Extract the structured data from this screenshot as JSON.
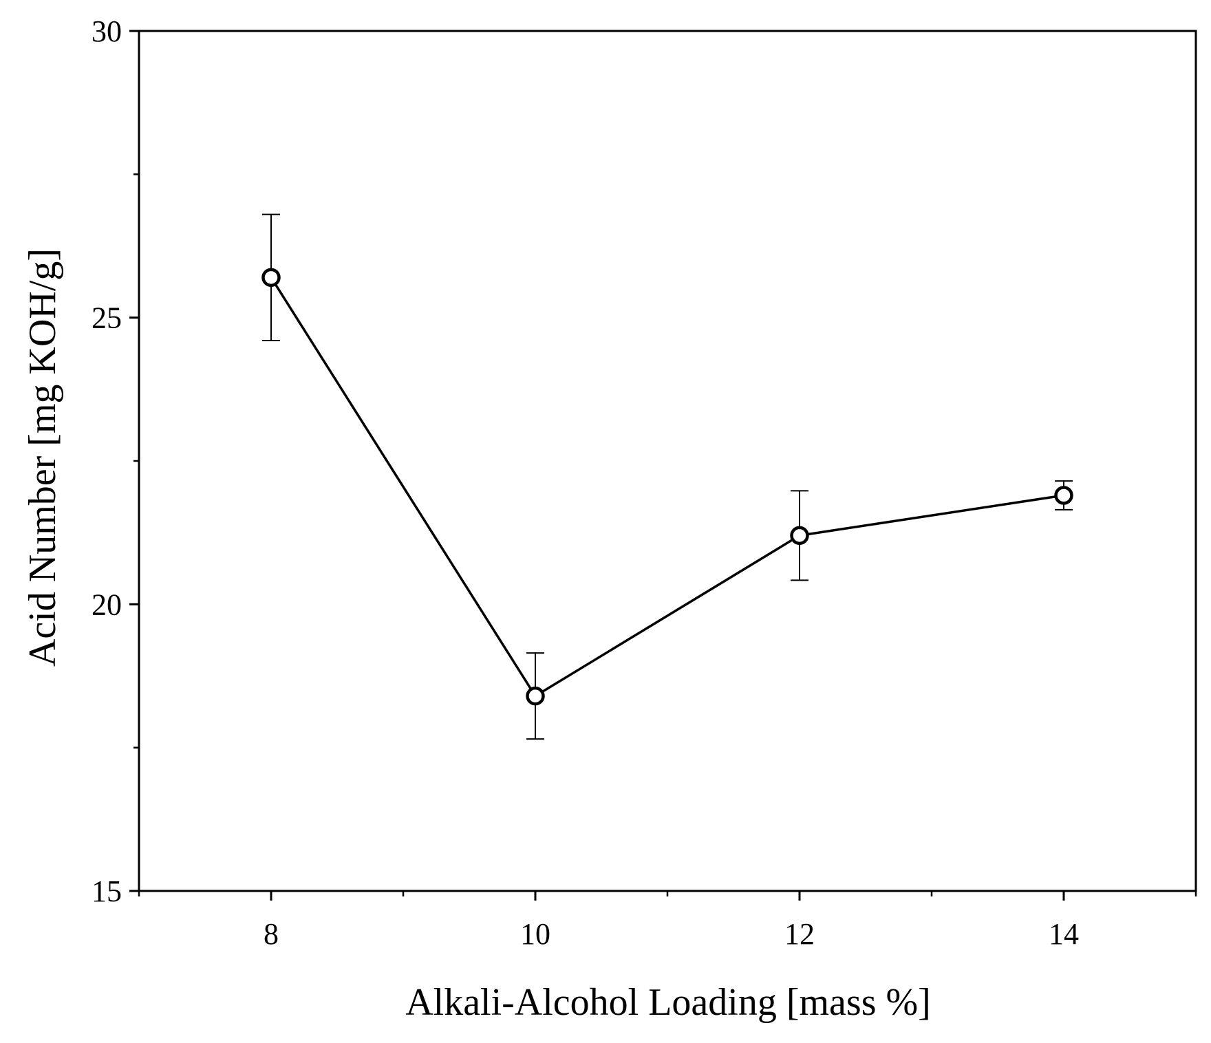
{
  "chart_data": {
    "type": "line",
    "title": "",
    "xlabel": "Alkali-Alcohol Loading [mass %]",
    "ylabel": "Acid Number [mg KOH/g]",
    "xlim": [
      7,
      15
    ],
    "ylim": [
      15,
      30
    ],
    "x_ticks": [
      8,
      10,
      12,
      14
    ],
    "x_tick_labels": [
      "8",
      "10",
      "12",
      "14"
    ],
    "x_minor_ticks": [
      7,
      9,
      11,
      13,
      15
    ],
    "y_ticks": [
      15,
      20,
      25,
      30
    ],
    "y_tick_labels": [
      "15",
      "20",
      "25",
      "30"
    ],
    "y_minor_ticks": [
      17.5,
      22.5,
      27.5
    ],
    "grid": false,
    "legend": "none",
    "series": [
      {
        "x": [
          8,
          10,
          12,
          14
        ],
        "values": [
          25.7,
          18.4,
          21.2,
          21.9
        ],
        "error": [
          1.1,
          0.75,
          0.78,
          0.25
        ],
        "marker": "open-circle",
        "color": "#000000"
      }
    ]
  }
}
